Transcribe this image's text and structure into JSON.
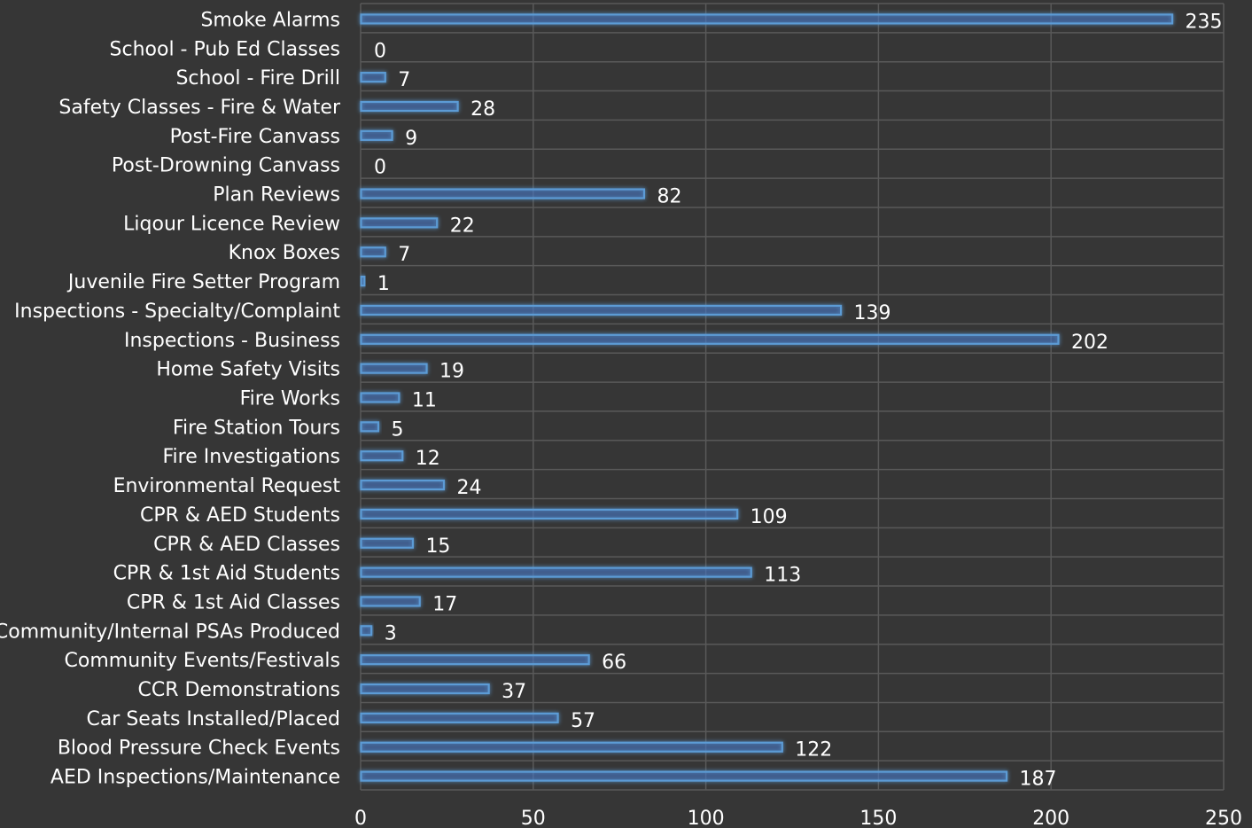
{
  "chart_data": {
    "type": "bar",
    "orientation": "horizontal",
    "categories": [
      "Smoke Alarms",
      "School - Pub Ed Classes",
      "School - Fire Drill",
      "Safety Classes - Fire & Water",
      "Post-Fire Canvass",
      "Post-Drowning Canvass",
      "Plan Reviews",
      "Liqour Licence Review",
      "Knox Boxes",
      "Juvenile Fire Setter Program",
      "Inspections - Specialty/Complaint",
      "Inspections - Business",
      "Home Safety Visits",
      "Fire Works",
      "Fire Station Tours",
      "Fire Investigations",
      "Environmental Request",
      "CPR & AED Students",
      "CPR & AED Classes",
      "CPR & 1st Aid Students",
      "CPR & 1st Aid Classes",
      "Community/Internal PSAs Produced",
      "Community Events/Festivals",
      "CCR Demonstrations",
      "Car Seats Installed/Placed",
      "Blood Pressure Check Events",
      "AED Inspections/Maintenance"
    ],
    "values": [
      235,
      0,
      7,
      28,
      9,
      0,
      82,
      22,
      7,
      1,
      139,
      202,
      19,
      11,
      5,
      12,
      24,
      109,
      15,
      113,
      17,
      3,
      66,
      37,
      57,
      122,
      187
    ],
    "xlim": [
      0,
      250
    ],
    "xticks": [
      "0",
      "50",
      "100",
      "150",
      "200",
      "250"
    ],
    "grid": true,
    "data_labels": true,
    "bar_color": "#5b9bd5",
    "bar_fill": "#4472c4",
    "background": "#363636",
    "text_color": "#ffffff"
  }
}
